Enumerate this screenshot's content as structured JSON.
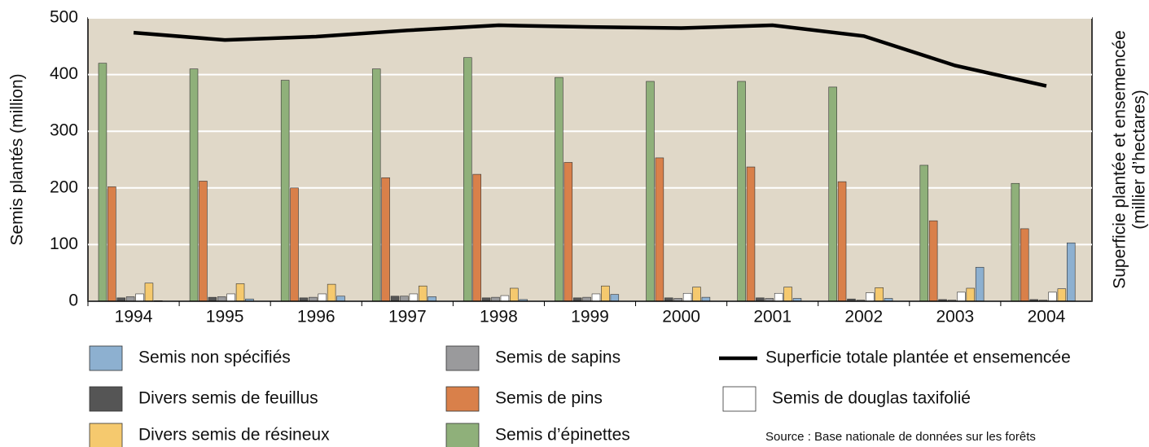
{
  "chart_data": {
    "type": "bar",
    "ylabel": "Semis plantés (million)",
    "y2label": [
      "Superficie plantée et ensemencée",
      "(millier d’hectares)"
    ],
    "source": "Source : Base nationale de données sur les forêts",
    "categories": [
      "1994",
      "1995",
      "1996",
      "1997",
      "1998",
      "1999",
      "2000",
      "2001",
      "2002",
      "2003",
      "2004"
    ],
    "ylim": [
      0,
      500
    ],
    "yticks": [
      0,
      100,
      200,
      300,
      400,
      500
    ],
    "grid": true,
    "y2lim": [
      0,
      500
    ],
    "series": [
      {
        "name": "Semis d’épinettes",
        "color": "#8fb07a",
        "values": [
          420,
          410,
          390,
          410,
          430,
          395,
          388,
          388,
          378,
          240,
          208
        ]
      },
      {
        "name": "Semis de pins",
        "color": "#d9804a",
        "values": [
          202,
          212,
          200,
          218,
          224,
          245,
          253,
          237,
          211,
          142,
          128
        ]
      },
      {
        "name": "Divers semis de feuillus",
        "color": "#555555",
        "values": [
          6,
          7,
          6,
          9,
          6,
          6,
          6,
          6,
          4,
          3,
          3
        ]
      },
      {
        "name": "Semis de sapins",
        "color": "#9a9a9c",
        "values": [
          8,
          8,
          7,
          9,
          7,
          7,
          5,
          5,
          2,
          2,
          2
        ]
      },
      {
        "name": "Semis de douglas taxifolié",
        "color": "#ffffff",
        "values": [
          13,
          13,
          13,
          13,
          10,
          13,
          14,
          14,
          15,
          16,
          16
        ]
      },
      {
        "name": "Divers semis de résineux",
        "color": "#f5c96e",
        "values": [
          32,
          31,
          30,
          27,
          23,
          27,
          25,
          25,
          24,
          23,
          22
        ]
      },
      {
        "name": "Semis non spécifiés",
        "color": "#8db0d0",
        "values": [
          1,
          4,
          9,
          8,
          3,
          12,
          7,
          5,
          5,
          60,
          103
        ]
      },
      {
        "name": "Superficie totale plantée et ensemencée",
        "color": "#000000",
        "type": "line",
        "axis": "y2",
        "values": [
          474,
          461,
          467,
          478,
          487,
          484,
          482,
          487,
          468,
          416,
          380
        ]
      }
    ]
  }
}
